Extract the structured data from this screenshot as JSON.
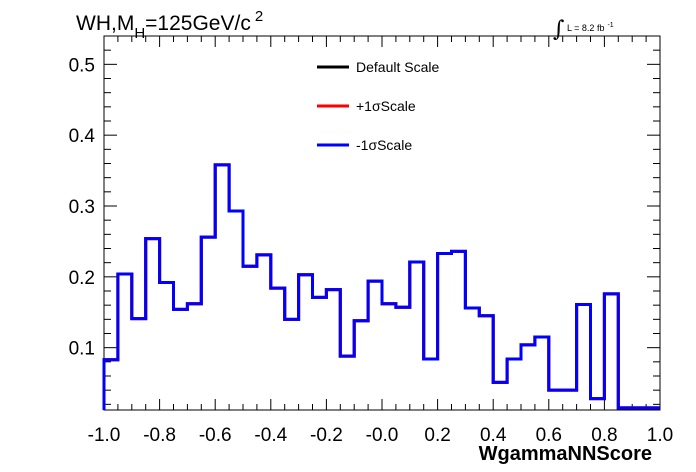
{
  "chart_data": {
    "type": "histogram",
    "title": {
      "main": "WH,M",
      "subscript": "H",
      "rest": "=125GeV/c",
      "superscript": "2"
    },
    "luminosity": {
      "symbol": "∫",
      "text": "L = 8.2 fb",
      "superscript": "-1"
    },
    "xlabel": "WgammaNNScore",
    "ylabel": "",
    "xlim": [
      -1.0,
      1.0
    ],
    "ylim": [
      0.012,
      0.54
    ],
    "x_ticks": [
      {
        "value": -1.0,
        "label": "-1.0"
      },
      {
        "value": -0.8,
        "label": "-0.8"
      },
      {
        "value": -0.6,
        "label": "-0.6"
      },
      {
        "value": -0.4,
        "label": "-0.4"
      },
      {
        "value": -0.2,
        "label": "-0.2"
      },
      {
        "value": 0.0,
        "label": "-0.0"
      },
      {
        "value": 0.2,
        "label": "0.2"
      },
      {
        "value": 0.4,
        "label": "0.4"
      },
      {
        "value": 0.6,
        "label": "0.6"
      },
      {
        "value": 0.8,
        "label": "0.8"
      },
      {
        "value": 1.0,
        "label": "1.0"
      }
    ],
    "y_ticks": [
      {
        "value": 0.1,
        "label": "0.1"
      },
      {
        "value": 0.2,
        "label": "0.2"
      },
      {
        "value": 0.3,
        "label": "0.3"
      },
      {
        "value": 0.4,
        "label": "0.4"
      },
      {
        "value": 0.5,
        "label": "0.5"
      }
    ],
    "grid": false,
    "legend_position": "top-center",
    "bin_edges": [
      -1.0,
      -0.95,
      -0.9,
      -0.85,
      -0.8,
      -0.75,
      -0.7,
      -0.65,
      -0.6,
      -0.55,
      -0.5,
      -0.45,
      -0.4,
      -0.35,
      -0.3,
      -0.25,
      -0.2,
      -0.15,
      -0.1,
      -0.05,
      0.0,
      0.05,
      0.1,
      0.15,
      0.2,
      0.25,
      0.3,
      0.35,
      0.4,
      0.45,
      0.5,
      0.55,
      0.6,
      0.65,
      0.7,
      0.75,
      0.8,
      0.85,
      0.9,
      0.95,
      1.0
    ],
    "series": [
      {
        "name": "Default Scale",
        "color": "#000000",
        "values": [
          0.083,
          0.204,
          0.141,
          0.254,
          0.192,
          0.154,
          0.162,
          0.256,
          0.358,
          0.293,
          0.215,
          0.231,
          0.184,
          0.14,
          0.203,
          0.171,
          0.182,
          0.088,
          0.138,
          0.194,
          0.162,
          0.157,
          0.221,
          0.084,
          0.233,
          0.236,
          0.156,
          0.145,
          0.051,
          0.084,
          0.104,
          0.115,
          0.04,
          0.04,
          0.161,
          0.028,
          0.176,
          0.015,
          0.015,
          0.015
        ]
      },
      {
        "name": "+1σScale",
        "color": "#ff0000",
        "values": [
          0.083,
          0.204,
          0.141,
          0.254,
          0.192,
          0.154,
          0.162,
          0.256,
          0.358,
          0.293,
          0.215,
          0.231,
          0.184,
          0.14,
          0.203,
          0.171,
          0.182,
          0.088,
          0.138,
          0.194,
          0.162,
          0.157,
          0.221,
          0.084,
          0.233,
          0.236,
          0.156,
          0.145,
          0.051,
          0.084,
          0.104,
          0.115,
          0.04,
          0.04,
          0.161,
          0.028,
          0.176,
          0.015,
          0.015,
          0.015
        ]
      },
      {
        "name": "-1σScale",
        "color": "#0000ff",
        "values": [
          0.083,
          0.204,
          0.141,
          0.254,
          0.192,
          0.154,
          0.162,
          0.256,
          0.358,
          0.293,
          0.215,
          0.231,
          0.184,
          0.14,
          0.203,
          0.171,
          0.182,
          0.088,
          0.138,
          0.194,
          0.162,
          0.157,
          0.221,
          0.084,
          0.233,
          0.236,
          0.156,
          0.145,
          0.051,
          0.084,
          0.104,
          0.115,
          0.04,
          0.04,
          0.161,
          0.028,
          0.176,
          0.015,
          0.015,
          0.015
        ]
      }
    ]
  }
}
